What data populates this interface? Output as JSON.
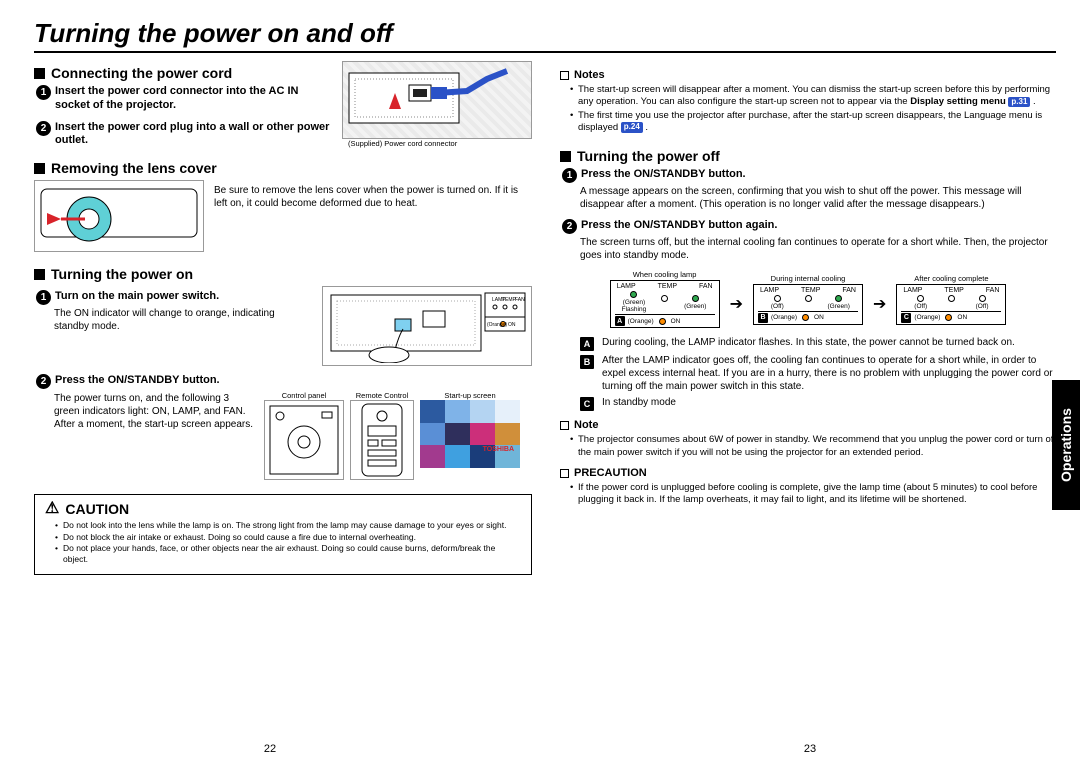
{
  "page": {
    "title": "Turning the power on and off",
    "side_tab": "Operations",
    "page_left": "22",
    "page_right": "23"
  },
  "colors": {
    "ref_badge": "#2b52c7",
    "led_orange": "#ff8c00",
    "led_green": "#2fa84f",
    "lens_cyan": "#5fd0d6"
  },
  "left": {
    "sec1": {
      "title": "Connecting the power cord",
      "step1": "Insert the power cord connector into the AC IN socket of the projector.",
      "step2": "Insert the power cord plug into a wall or other power outlet.",
      "illus_caption": "(Supplied) Power cord connector"
    },
    "sec2": {
      "title": "Removing the lens cover",
      "body": "Be sure to remove the lens cover when the power is turned on. If it is left on, it could become deformed due to heat."
    },
    "sec3": {
      "title": "Turning the power on",
      "step1_title": "Turn on the main power switch.",
      "step1_body": "The ON indicator will change to orange, indicating standby mode.",
      "step2_title": "Press the ON/STANDBY button.",
      "step2_body": "The power turns on, and the following 3 green indicators light: ON, LAMP, and FAN. After a moment, the start-up screen appears.",
      "cap_control_panel": "Control panel",
      "cap_remote": "Remote Control",
      "cap_startup": "Start-up screen",
      "brand": "TOSHIBA"
    },
    "caution": {
      "title": "CAUTION",
      "b1": "Do not look into the lens while the lamp is on.  The strong light from the lamp may cause damage to your eyes or sight.",
      "b2": "Do not block the air intake or exhaust. Doing so could cause a fire due to internal overheating.",
      "b3": "Do not place your hands, face, or other objects near the air exhaust. Doing so could cause burns, deform/break the object."
    }
  },
  "right": {
    "notes": {
      "title": "Notes",
      "n1a": "The start-up screen will disappear after a moment. You can dismiss the start-up screen before this by performing any operation. You can also configure the start-up screen not to appear via the ",
      "n1b": "Display setting menu",
      "n1_ref": "p.31",
      "n2a": "The first time you use the projector after purchase, after the start-up screen disappears, the Language menu is displayed ",
      "n2_ref": "p.24"
    },
    "sec_off": {
      "title": "Turning the power off",
      "s1_title": "Press the ON/STANDBY button.",
      "s1_body": "A message appears on the screen, confirming that you wish to shut off the power. This message will disappear after a moment. (This operation is no longer valid after the message disappears.)",
      "s2_title": "Press the ON/STANDBY button again.",
      "s2_body": "The screen turns off, but the internal cooling fan continues to operate for a short while. Then, the projector goes into standby mode."
    },
    "panels": {
      "p1_title": "When cooling lamp",
      "p2_title": "During internal cooling",
      "p3_title": "After cooling complete",
      "lamp": "LAMP",
      "temp": "TEMP",
      "fan": "FAN",
      "green": "(Green)",
      "flashing": "Flashing",
      "off": "(Off)",
      "orange": "(Orange)",
      "on": "ON",
      "A": "A",
      "B": "B",
      "C": "C"
    },
    "abc": {
      "A": "During cooling, the LAMP indicator flashes. In this state, the power cannot be turned back on.",
      "B": "After the LAMP indicator goes off, the cooling fan continues to operate for a short while, in order to expel excess internal heat. If you are in a hurry, there is no problem with unplugging the power cord or turning off the main power switch in this state.",
      "C": "In standby mode"
    },
    "note2": {
      "title": "Note",
      "body": "The projector consumes about 6W of power in standby. We recommend that you unplug the power cord or turn off the main power switch if you will not be using the projector for an extended period."
    },
    "precaution": {
      "title": "PRECAUTION",
      "body": "If the power cord is unplugged before cooling is complete, give the lamp time (about 5 minutes) to cool before plugging it back in. If the lamp overheats, it may fail to light, and its lifetime will be shortened."
    }
  },
  "mosaic_colors": [
    "#2c5aa0",
    "#7fb3e8",
    "#b4d4f2",
    "#e6f0fa",
    "#5a8fd6",
    "#2f2f5c",
    "#cc2f7a",
    "#d08f3a",
    "#a23a8e",
    "#3fa0e0",
    "#1a3d7a",
    "#6fb5d9"
  ]
}
